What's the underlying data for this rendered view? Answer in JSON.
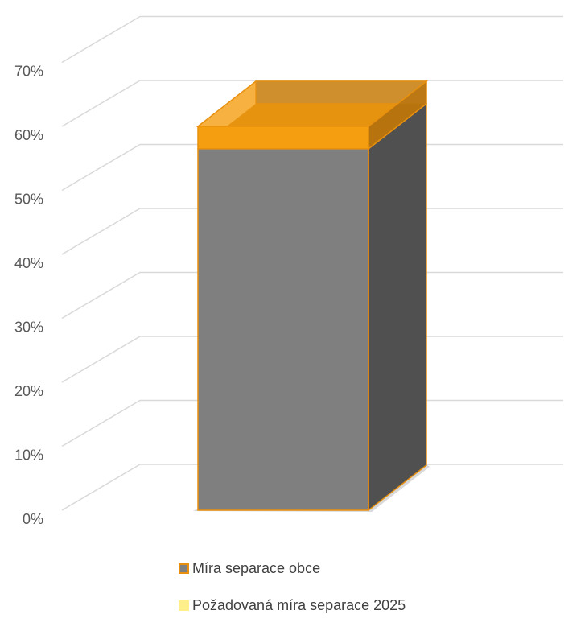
{
  "chart_data": {
    "type": "bar",
    "style": "3d-stacked-overlay",
    "categories": [
      ""
    ],
    "series": [
      {
        "name": "Míra separace obce",
        "values": [
          56.5
        ],
        "color": "#7f7f7f",
        "border": "#e8900e"
      },
      {
        "name": "Požadovaná míra separace 2025",
        "values": [
          60
        ],
        "color": "#f59e10",
        "legend_color": "#ffef8a"
      }
    ],
    "yticks": [
      "0%",
      "10%",
      "20%",
      "30%",
      "40%",
      "50%",
      "60%",
      "70%"
    ],
    "ylim": [
      0,
      80
    ],
    "grid": true,
    "legend_position": "bottom"
  }
}
